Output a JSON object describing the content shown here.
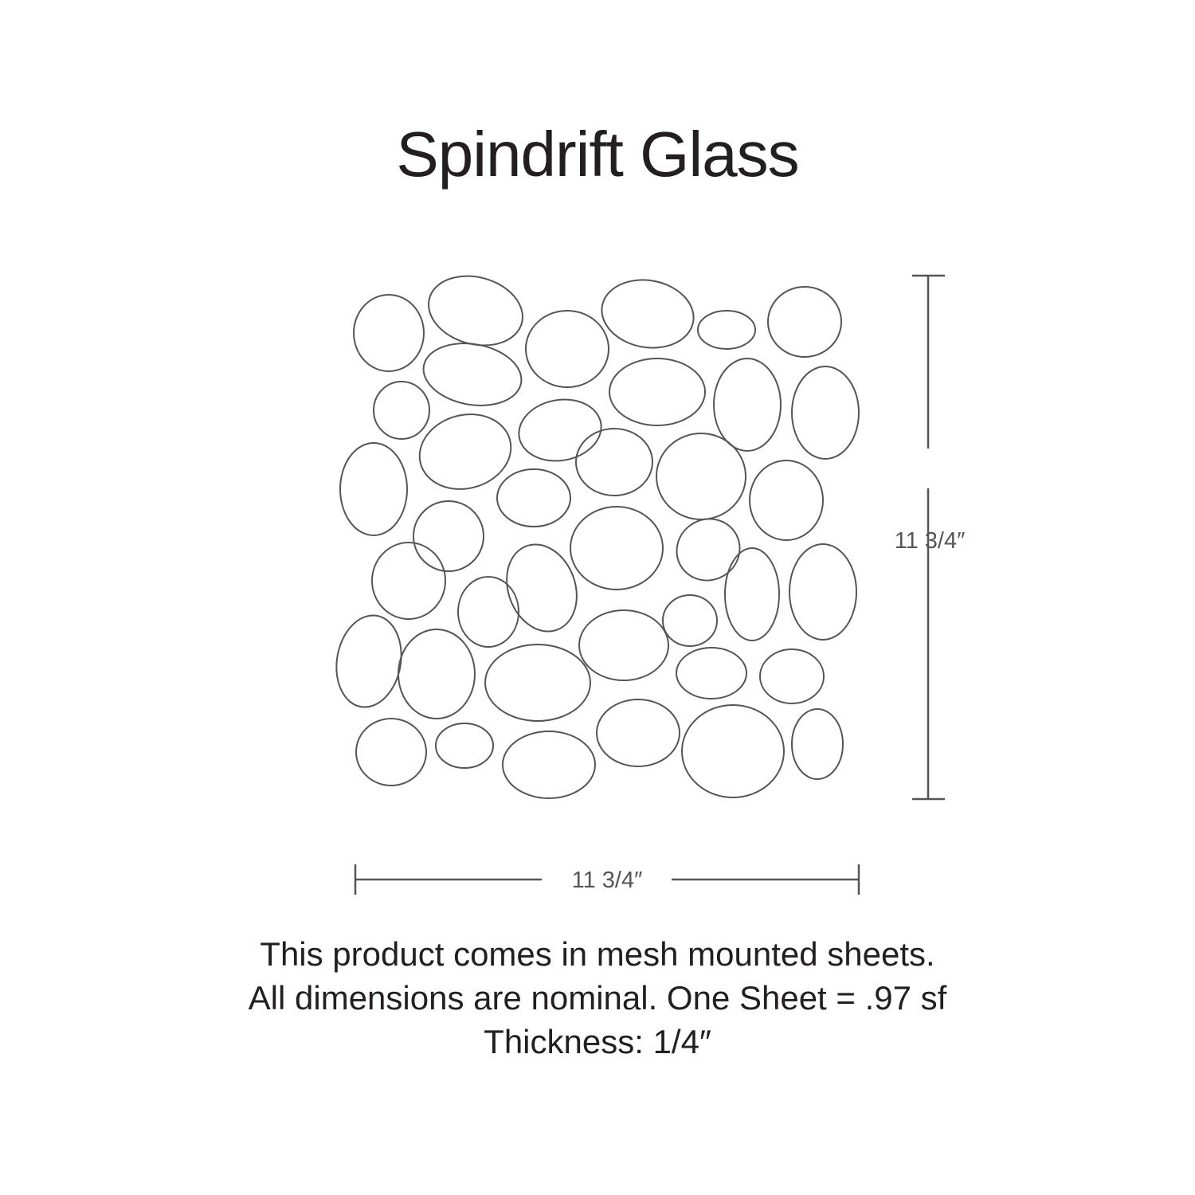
{
  "title": "Spindrift Glass",
  "dimensions": {
    "height_label": "11 3/4″",
    "width_label": "11 3/4″"
  },
  "notes": [
    "This product comes in mesh mounted sheets.",
    "All dimensions are nominal. One Sheet = .97 sf",
    "Thickness: 1/4″"
  ],
  "colors": {
    "outline": "#555555",
    "text": "#231f20"
  }
}
